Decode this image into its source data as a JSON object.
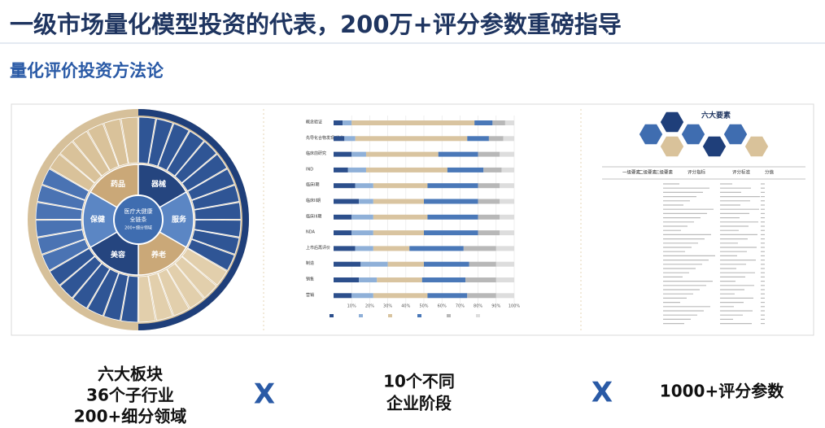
{
  "header": {
    "title": "一级市场量化模型投资的代表，200万+评分参数重磅指导",
    "subtitle": "量化评价投资方法论"
  },
  "wheel": {
    "center": [
      "医疗大健康",
      "全链条",
      "200+细分领域"
    ],
    "sectors": [
      "药品",
      "器械",
      "服务",
      "养老",
      "美容",
      "保健"
    ]
  },
  "stage_chart": {
    "type": "bar",
    "categories": [
      "概念验证",
      "先导化合物发现/优化",
      "临床前研究",
      "IND",
      "临床I期",
      "临床II期",
      "临床III期",
      "NDA",
      "上市后再评价",
      "制造",
      "销售",
      "营销"
    ],
    "xlim": [
      0,
      100
    ],
    "xticks": [
      {
        "value": 10,
        "label": "10%"
      },
      {
        "value": 20,
        "label": "20%"
      },
      {
        "value": 30,
        "label": "30%"
      },
      {
        "value": 40,
        "label": "40%"
      },
      {
        "value": 50,
        "label": "50%"
      },
      {
        "value": 60,
        "label": "60%"
      },
      {
        "value": 70,
        "label": "70%"
      },
      {
        "value": 80,
        "label": "80%"
      },
      {
        "value": 90,
        "label": "90%"
      },
      {
        "value": 100,
        "label": "100%"
      }
    ],
    "series": [
      {
        "color": "#2c4f8c",
        "values": [
          5,
          6,
          10,
          8,
          12,
          14,
          10,
          10,
          12,
          15,
          14,
          10
        ]
      },
      {
        "color": "#8fb0d8",
        "values": [
          5,
          6,
          8,
          10,
          10,
          8,
          12,
          12,
          10,
          15,
          10,
          12
        ]
      },
      {
        "color": "#d9c4a0",
        "values": [
          68,
          62,
          40,
          45,
          30,
          28,
          30,
          28,
          20,
          20,
          25,
          30
        ]
      },
      {
        "color": "#4a78b8",
        "values": [
          10,
          12,
          22,
          20,
          28,
          30,
          28,
          30,
          30,
          25,
          24,
          22
        ]
      },
      {
        "color": "#b8b8b8",
        "values": [
          7,
          8,
          12,
          10,
          12,
          12,
          12,
          12,
          18,
          15,
          17,
          16
        ]
      },
      {
        "color": "#dddddd",
        "values": [
          5,
          6,
          8,
          7,
          8,
          8,
          8,
          8,
          10,
          10,
          10,
          10
        ]
      }
    ]
  },
  "elements": {
    "title": "六大要素",
    "headers": [
      "一级要素",
      "二级要素",
      "三级要素",
      "评分指标",
      "评分标准",
      "分值"
    ]
  },
  "footer": {
    "left": [
      "六大板块",
      "36个子行业",
      "200+细分领域"
    ],
    "times1": "X",
    "middle": [
      "10个不同",
      "企业阶段"
    ],
    "times2": "X",
    "right": "1000+评分参数"
  }
}
